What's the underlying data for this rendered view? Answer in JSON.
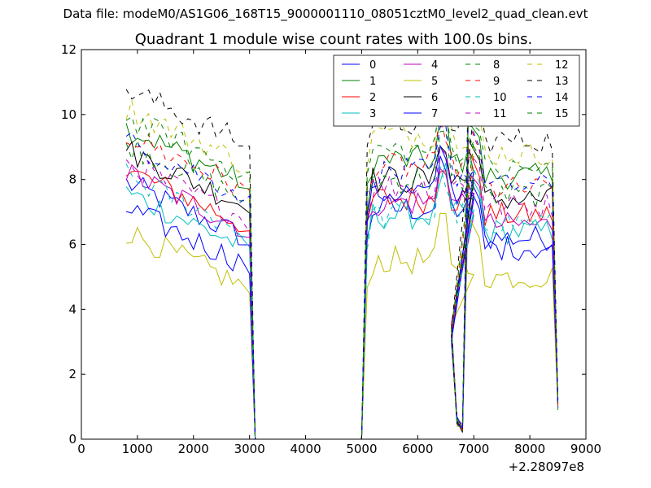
{
  "header": {
    "file_label": "Data file: modeM0/AS1G06_168T15_9000001110_08051cztM0_level2_quad_clean.evt"
  },
  "chart_data": {
    "type": "line",
    "title": "Quadrant 1 module wise count rates with 100.0s bins.",
    "xlabel": "",
    "ylabel": "",
    "xlim": [
      0,
      9000
    ],
    "ylim": [
      0,
      12
    ],
    "x_ticks": [
      0,
      1000,
      2000,
      3000,
      4000,
      5000,
      6000,
      7000,
      8000,
      9000
    ],
    "x_tick_labels": [
      "0",
      "1000",
      "2000",
      "3000",
      "4000",
      "5000",
      "6000",
      "7000",
      "8000",
      "9000"
    ],
    "y_ticks": [
      0,
      2,
      4,
      6,
      8,
      10,
      12
    ],
    "y_tick_labels": [
      "0",
      "2",
      "4",
      "6",
      "8",
      "10",
      "12"
    ],
    "x_offset_label": "+2.28097e8",
    "legend_position": "top-right",
    "x_segments": [
      {
        "start": 800,
        "step": 100,
        "count": 21
      },
      {
        "start": 5000,
        "step": 100,
        "count": 21
      },
      {
        "start": 7000,
        "step": 100,
        "count": 15
      }
    ],
    "gap_segments": [
      {
        "x": [
          3000,
          3100,
          5000
        ],
        "y": [
          7.0,
          0,
          0
        ]
      },
      {
        "x": [
          6500,
          6600,
          6700,
          6800,
          6900,
          7000
        ],
        "y": [
          9.0,
          3.0,
          0.4,
          0.2,
          9.0,
          9.5
        ]
      }
    ],
    "series": [
      {
        "name": "0",
        "color": "#0000ff",
        "dash": "solid",
        "base1": 6.6,
        "base2": 7.1,
        "base3": 6.2
      },
      {
        "name": "1",
        "color": "#008000",
        "dash": "solid",
        "base1": 8.3,
        "base2": 8.6,
        "base3": 8.1
      },
      {
        "name": "2",
        "color": "#ff0000",
        "dash": "solid",
        "base1": 7.0,
        "base2": 7.4,
        "base3": 6.9
      },
      {
        "name": "3",
        "color": "#00bfbf",
        "dash": "solid",
        "base1": 6.3,
        "base2": 6.9,
        "base3": 6.4
      },
      {
        "name": "4",
        "color": "#bf00bf",
        "dash": "solid",
        "base1": 6.9,
        "base2": 7.3,
        "base3": 6.6
      },
      {
        "name": "5",
        "color": "#bfbf00",
        "dash": "solid",
        "base1": 5.1,
        "base2": 5.5,
        "base3": 5.0
      },
      {
        "name": "6",
        "color": "#000000",
        "dash": "solid",
        "base1": 7.6,
        "base2": 8.0,
        "base3": 7.4
      },
      {
        "name": "7",
        "color": "#0000ff",
        "dash": "solid",
        "base1": 5.8,
        "base2": 7.6,
        "base3": 5.9
      },
      {
        "name": "8",
        "color": "#008000",
        "dash": "dashed",
        "base1": 7.8,
        "base2": 8.0,
        "base3": 7.5
      },
      {
        "name": "9",
        "color": "#ff0000",
        "dash": "dashed",
        "base1": 8.1,
        "base2": 8.4,
        "base3": 7.7
      },
      {
        "name": "10",
        "color": "#00bfbf",
        "dash": "dashed",
        "base1": 6.8,
        "base2": 6.9,
        "base3": 6.7
      },
      {
        "name": "11",
        "color": "#bf00bf",
        "dash": "dashed",
        "base1": 7.2,
        "base2": 7.8,
        "base3": 7.2
      },
      {
        "name": "12",
        "color": "#bfbf00",
        "dash": "dashed",
        "base1": 8.9,
        "base2": 9.4,
        "base3": 8.8
      },
      {
        "name": "13",
        "color": "#000000",
        "dash": "dashed",
        "base1": 9.5,
        "base2": 9.8,
        "base3": 9.2
      },
      {
        "name": "14",
        "color": "#0000ff",
        "dash": "dashed",
        "base1": 7.9,
        "base2": 8.2,
        "base3": 7.8
      },
      {
        "name": "15",
        "color": "#008000",
        "dash": "dashed",
        "base1": 8.6,
        "base2": 8.9,
        "base3": 8.3
      }
    ]
  }
}
